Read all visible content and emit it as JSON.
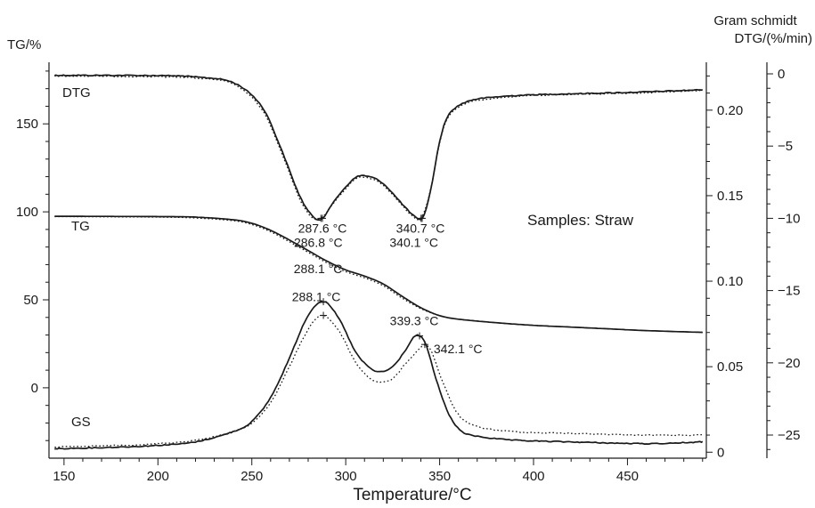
{
  "chart_data": {
    "type": "line",
    "xlabel": "Temperature/°C",
    "ylabel_left": "TG/%",
    "ylabel_right_gs": "Gram schmidt",
    "ylabel_right_dtg": "DTG/(%/min)",
    "xlim": [
      142,
      492
    ],
    "x_ticks": [
      150,
      200,
      250,
      300,
      350,
      400,
      450
    ],
    "y_left": {
      "lim": [
        -40,
        185
      ],
      "ticks": [
        0,
        50,
        100,
        150
      ]
    },
    "y_gs": {
      "lim": [
        -0.0035,
        0.228
      ],
      "ticks": [
        0,
        0.05,
        0.1,
        0.15,
        0.2
      ],
      "tick_labels": [
        "0",
        "0.05",
        "0.10",
        "0.15",
        "0.20"
      ]
    },
    "y_dtg": {
      "lim": [
        -26.6,
        0.8
      ],
      "ticks": [
        0,
        -5,
        -10,
        -15,
        -20,
        -25
      ],
      "tick_labels": [
        "0",
        "−5",
        "−10",
        "−15",
        "−20",
        "−25"
      ]
    },
    "annotation": "Samples: Straw",
    "series": [
      {
        "label": "DTG",
        "axis": "dtg",
        "style": "solid",
        "points": [
          [
            145,
            -0.1
          ],
          [
            200,
            -0.12
          ],
          [
            220,
            -0.22
          ],
          [
            240,
            -0.6
          ],
          [
            255,
            -2.2
          ],
          [
            265,
            -5.0
          ],
          [
            275,
            -8.3
          ],
          [
            282,
            -9.8
          ],
          [
            287.6,
            -10.0
          ],
          [
            295,
            -8.6
          ],
          [
            305,
            -7.2
          ],
          [
            312,
            -7.1
          ],
          [
            320,
            -7.6
          ],
          [
            330,
            -9.0
          ],
          [
            336,
            -9.8
          ],
          [
            340.7,
            -10.0
          ],
          [
            345,
            -8.2
          ],
          [
            350,
            -4.7
          ],
          [
            355,
            -2.8
          ],
          [
            365,
            -1.9
          ],
          [
            380,
            -1.6
          ],
          [
            400,
            -1.45
          ],
          [
            430,
            -1.35
          ],
          [
            460,
            -1.25
          ],
          [
            490,
            -1.1
          ]
        ]
      },
      {
        "label": "",
        "axis": "dtg",
        "style": "dotted",
        "points": [
          [
            145,
            -0.15
          ],
          [
            200,
            -0.2
          ],
          [
            220,
            -0.3
          ],
          [
            240,
            -0.7
          ],
          [
            255,
            -2.4
          ],
          [
            265,
            -5.2
          ],
          [
            275,
            -8.5
          ],
          [
            281,
            -9.8
          ],
          [
            286.8,
            -10.0
          ],
          [
            295,
            -8.7
          ],
          [
            305,
            -7.3
          ],
          [
            312,
            -7.2
          ],
          [
            320,
            -7.7
          ],
          [
            330,
            -9.1
          ],
          [
            335,
            -9.8
          ],
          [
            340.1,
            -10.0
          ],
          [
            345,
            -8.1
          ],
          [
            350,
            -4.8
          ],
          [
            355,
            -2.9
          ],
          [
            365,
            -2.0
          ],
          [
            380,
            -1.7
          ],
          [
            400,
            -1.5
          ],
          [
            430,
            -1.4
          ],
          [
            460,
            -1.3
          ],
          [
            490,
            -1.15
          ]
        ]
      },
      {
        "label": "TG",
        "axis": "left",
        "style": "solid",
        "points": [
          [
            145,
            97.5
          ],
          [
            200,
            97.3
          ],
          [
            220,
            97
          ],
          [
            240,
            95.5
          ],
          [
            250,
            93.5
          ],
          [
            260,
            89.5
          ],
          [
            270,
            84
          ],
          [
            280,
            78
          ],
          [
            290,
            72
          ],
          [
            300,
            67
          ],
          [
            310,
            63.5
          ],
          [
            320,
            59
          ],
          [
            330,
            52
          ],
          [
            340,
            45.5
          ],
          [
            350,
            41
          ],
          [
            360,
            39
          ],
          [
            380,
            37
          ],
          [
            400,
            35.5
          ],
          [
            420,
            34.5
          ],
          [
            440,
            33.5
          ],
          [
            460,
            32.5
          ],
          [
            490,
            31.5
          ]
        ]
      },
      {
        "label": "",
        "axis": "left",
        "style": "dotted",
        "points": [
          [
            145,
            97.3
          ],
          [
            200,
            97
          ],
          [
            220,
            96.5
          ],
          [
            240,
            95
          ],
          [
            250,
            92.8
          ],
          [
            260,
            88.7
          ],
          [
            270,
            83
          ],
          [
            280,
            77
          ],
          [
            290,
            71
          ],
          [
            300,
            66
          ],
          [
            310,
            62.5
          ],
          [
            320,
            58
          ],
          [
            330,
            51
          ],
          [
            340,
            45
          ],
          [
            350,
            41
          ],
          [
            360,
            39
          ],
          [
            380,
            37
          ],
          [
            400,
            35.5
          ],
          [
            420,
            34.5
          ],
          [
            440,
            33.5
          ],
          [
            460,
            32.5
          ],
          [
            490,
            31.5
          ]
        ]
      },
      {
        "label": "GS",
        "axis": "gs",
        "style": "solid",
        "points": [
          [
            145,
            0.002
          ],
          [
            180,
            0.003
          ],
          [
            200,
            0.004
          ],
          [
            220,
            0.006
          ],
          [
            240,
            0.012
          ],
          [
            250,
            0.018
          ],
          [
            260,
            0.032
          ],
          [
            270,
            0.055
          ],
          [
            278,
            0.076
          ],
          [
            284,
            0.086
          ],
          [
            288.1,
            0.088
          ],
          [
            292,
            0.085
          ],
          [
            298,
            0.075
          ],
          [
            305,
            0.059
          ],
          [
            312,
            0.05
          ],
          [
            318,
            0.047
          ],
          [
            325,
            0.05
          ],
          [
            332,
            0.06
          ],
          [
            336,
            0.067
          ],
          [
            339.3,
            0.068
          ],
          [
            343,
            0.062
          ],
          [
            348,
            0.043
          ],
          [
            355,
            0.022
          ],
          [
            362,
            0.012
          ],
          [
            372,
            0.009
          ],
          [
            390,
            0.007
          ],
          [
            420,
            0.006
          ],
          [
            460,
            0.005
          ],
          [
            490,
            0.006
          ]
        ]
      },
      {
        "label": "",
        "axis": "gs",
        "style": "dotted",
        "points": [
          [
            145,
            0.003
          ],
          [
            180,
            0.004
          ],
          [
            200,
            0.005
          ],
          [
            220,
            0.007
          ],
          [
            240,
            0.012
          ],
          [
            250,
            0.017
          ],
          [
            260,
            0.029
          ],
          [
            270,
            0.05
          ],
          [
            278,
            0.068
          ],
          [
            284,
            0.078
          ],
          [
            288.1,
            0.08
          ],
          [
            292,
            0.077
          ],
          [
            298,
            0.068
          ],
          [
            305,
            0.053
          ],
          [
            312,
            0.044
          ],
          [
            318,
            0.041
          ],
          [
            325,
            0.043
          ],
          [
            332,
            0.052
          ],
          [
            338,
            0.059
          ],
          [
            342.1,
            0.063
          ],
          [
            346,
            0.058
          ],
          [
            352,
            0.04
          ],
          [
            360,
            0.022
          ],
          [
            370,
            0.015
          ],
          [
            390,
            0.012
          ],
          [
            420,
            0.011
          ],
          [
            460,
            0.01
          ],
          [
            490,
            0.01
          ]
        ]
      }
    ],
    "peak_annotations": [
      {
        "text": "287.6 °C",
        "x": 287.6,
        "axis": "dtg",
        "y": -10.0
      },
      {
        "text": "286.8 °C",
        "x": 286.8,
        "axis": "dtg",
        "y": -10.0
      },
      {
        "text": "340.7 °C",
        "x": 340.7,
        "axis": "dtg",
        "y": -10.0
      },
      {
        "text": "340.1 °C",
        "x": 340.1,
        "axis": "dtg",
        "y": -10.0
      },
      {
        "text": "288.1 °C",
        "x": 288.1,
        "axis": "gs",
        "y": 0.088
      },
      {
        "text": "288.1 °C",
        "x": 288.1,
        "axis": "gs",
        "y": 0.08
      },
      {
        "text": "339.3 °C",
        "x": 339.3,
        "axis": "gs",
        "y": 0.068
      },
      {
        "text": "342.1 °C",
        "x": 342.1,
        "axis": "gs",
        "y": 0.063
      }
    ]
  }
}
